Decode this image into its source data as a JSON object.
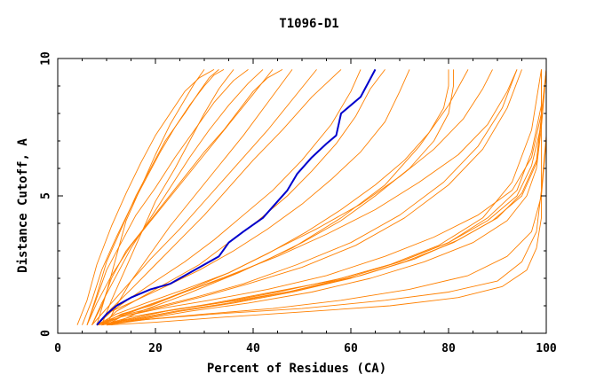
{
  "chart_data": {
    "type": "line",
    "title": "T1096-D1",
    "xlabel": "Percent of Residues (CA)",
    "ylabel": "Distance Cutoff, A",
    "xlim": [
      0,
      100
    ],
    "ylim": [
      0,
      10
    ],
    "xticks": [
      "0",
      "20",
      "40",
      "60",
      "80",
      "100"
    ],
    "yticks": [
      "0",
      "5",
      "10"
    ],
    "grid": false,
    "colors": {
      "highlight": "#0000cc",
      "others": "#ff8000"
    },
    "series": [
      {
        "highlight": true,
        "x": [
          8,
          10,
          12,
          15,
          19,
          23,
          26,
          29,
          33,
          35,
          38,
          42,
          45,
          47,
          49,
          52,
          55,
          57,
          58,
          60,
          62,
          65
        ],
        "y": [
          0.3,
          0.7,
          1.0,
          1.3,
          1.6,
          1.8,
          2.1,
          2.4,
          2.8,
          3.3,
          3.7,
          4.2,
          4.8,
          5.2,
          5.8,
          6.4,
          6.9,
          7.2,
          8.0,
          8.3,
          8.6,
          9.6
        ]
      },
      {
        "x": [
          7,
          9,
          11,
          14,
          18,
          22,
          26,
          30,
          34,
          37,
          40,
          43,
          46
        ],
        "y": [
          0.3,
          1.0,
          2.0,
          3.0,
          3.9,
          4.8,
          5.7,
          6.6,
          7.4,
          8.1,
          8.8,
          9.3,
          9.6
        ]
      },
      {
        "x": [
          5,
          7,
          9,
          12,
          15,
          18,
          21,
          24,
          27,
          30,
          32,
          34
        ],
        "y": [
          0.3,
          1.2,
          2.3,
          3.5,
          4.6,
          5.6,
          6.6,
          7.5,
          8.3,
          9.0,
          9.4,
          9.6
        ]
      },
      {
        "x": [
          6,
          8,
          10,
          13,
          16,
          19,
          22,
          26,
          29,
          31,
          33
        ],
        "y": [
          0.3,
          1.4,
          2.6,
          3.8,
          5.0,
          6.0,
          7.0,
          8.0,
          8.8,
          9.3,
          9.6
        ]
      },
      {
        "x": [
          8,
          10,
          12,
          14,
          17,
          20,
          23,
          26,
          28,
          30
        ],
        "y": [
          0.3,
          1.5,
          2.8,
          4.1,
          5.3,
          6.5,
          7.6,
          8.5,
          9.1,
          9.6
        ]
      },
      {
        "x": [
          4,
          6,
          8,
          11,
          14,
          17,
          20,
          23,
          26,
          29,
          32
        ],
        "y": [
          0.3,
          1.2,
          2.5,
          3.9,
          5.1,
          6.2,
          7.2,
          8.0,
          8.8,
          9.3,
          9.6
        ]
      },
      {
        "x": [
          9,
          11,
          14,
          17,
          20,
          24,
          27,
          30,
          33,
          36
        ],
        "y": [
          0.3,
          1.2,
          2.4,
          3.6,
          4.8,
          6.0,
          7.0,
          8.0,
          8.9,
          9.6
        ]
      },
      {
        "x": [
          7,
          9,
          12,
          15,
          19,
          23,
          27,
          31,
          35,
          39,
          42
        ],
        "y": [
          0.3,
          1.1,
          2.1,
          3.1,
          4.2,
          5.3,
          6.4,
          7.4,
          8.3,
          9.1,
          9.6
        ]
      },
      {
        "x": [
          10,
          12,
          15,
          19,
          23,
          28,
          33,
          38,
          43,
          48
        ],
        "y": [
          0.3,
          1.0,
          1.9,
          2.9,
          3.9,
          5.0,
          6.1,
          7.2,
          8.4,
          9.6
        ]
      },
      {
        "x": [
          6,
          8,
          10,
          13,
          16,
          20,
          24,
          28,
          32,
          36,
          39
        ],
        "y": [
          0.3,
          1.3,
          2.3,
          3.3,
          4.3,
          5.3,
          6.4,
          7.4,
          8.4,
          9.2,
          9.6
        ]
      },
      {
        "x": [
          8,
          11,
          15,
          20,
          25,
          30,
          35,
          40,
          46,
          52,
          58
        ],
        "y": [
          0.3,
          0.9,
          1.6,
          2.5,
          3.4,
          4.3,
          5.3,
          6.3,
          7.4,
          8.6,
          9.6
        ]
      },
      {
        "x": [
          8,
          11,
          15,
          20,
          26,
          32,
          38,
          44,
          50,
          56,
          60,
          62
        ],
        "y": [
          0.3,
          0.8,
          1.3,
          1.9,
          2.6,
          3.4,
          4.3,
          5.2,
          6.3,
          7.6,
          8.8,
          9.6
        ]
      },
      {
        "x": [
          9,
          12,
          17,
          23,
          29,
          35,
          41,
          47,
          52,
          57,
          61,
          64,
          67
        ],
        "y": [
          0.3,
          0.8,
          1.3,
          1.9,
          2.5,
          3.3,
          4.1,
          5.0,
          5.9,
          6.9,
          7.9,
          8.9,
          9.6
        ]
      },
      {
        "x": [
          8,
          11,
          16,
          22,
          29,
          36,
          43,
          50,
          56,
          62,
          67,
          70,
          72
        ],
        "y": [
          0.3,
          0.8,
          1.2,
          1.7,
          2.3,
          3.0,
          3.8,
          4.7,
          5.6,
          6.6,
          7.7,
          8.8,
          9.6
        ]
      },
      {
        "x": [
          10,
          14,
          20,
          27,
          35,
          43,
          51,
          58,
          65,
          71,
          76,
          79,
          80,
          80
        ],
        "y": [
          0.3,
          0.7,
          1.1,
          1.6,
          2.2,
          2.9,
          3.7,
          4.5,
          5.4,
          6.3,
          7.3,
          8.2,
          9.0,
          9.6
        ]
      },
      {
        "x": [
          9,
          13,
          19,
          26,
          34,
          42,
          50,
          58,
          65,
          72,
          77,
          80,
          81,
          81
        ],
        "y": [
          0.3,
          0.7,
          1.0,
          1.5,
          2.0,
          2.6,
          3.3,
          4.1,
          5.0,
          6.0,
          7.0,
          8.0,
          9.0,
          9.6
        ]
      },
      {
        "x": [
          8,
          12,
          18,
          26,
          35,
          44,
          53,
          62,
          70,
          77,
          83,
          87,
          89
        ],
        "y": [
          0.3,
          0.7,
          1.1,
          1.6,
          2.2,
          3.0,
          3.8,
          4.7,
          5.7,
          6.7,
          7.8,
          8.9,
          9.6
        ]
      },
      {
        "x": [
          8,
          12,
          18,
          26,
          35,
          45,
          55,
          65,
          74,
          82,
          88,
          92,
          94
        ],
        "y": [
          0.3,
          0.6,
          1.0,
          1.5,
          2.1,
          2.8,
          3.6,
          4.5,
          5.5,
          6.5,
          7.6,
          8.8,
          9.6
        ]
      },
      {
        "x": [
          9,
          13,
          20,
          29,
          39,
          50,
          61,
          71,
          80,
          87,
          92,
          95
        ],
        "y": [
          0.3,
          0.6,
          0.9,
          1.3,
          1.8,
          2.4,
          3.2,
          4.2,
          5.4,
          6.7,
          8.2,
          9.6
        ]
      },
      {
        "x": [
          8,
          12,
          19,
          28,
          38,
          49,
          60,
          70,
          79,
          86,
          91,
          94
        ],
        "y": [
          0.3,
          0.6,
          0.9,
          1.3,
          1.8,
          2.5,
          3.3,
          4.3,
          5.5,
          6.8,
          8.2,
          9.6
        ]
      },
      {
        "x": [
          9,
          14,
          22,
          32,
          44,
          56,
          68,
          78,
          87,
          93,
          97,
          99
        ],
        "y": [
          0.3,
          0.5,
          0.8,
          1.1,
          1.5,
          1.9,
          2.5,
          3.2,
          4.2,
          5.5,
          7.4,
          9.6
        ]
      },
      {
        "x": [
          9,
          14,
          22,
          33,
          45,
          58,
          70,
          80,
          88,
          94,
          97,
          99,
          99
        ],
        "y": [
          0.3,
          0.5,
          0.8,
          1.1,
          1.5,
          2.0,
          2.6,
          3.3,
          4.2,
          5.2,
          6.6,
          8.3,
          9.6
        ]
      },
      {
        "x": [
          10,
          16,
          25,
          36,
          48,
          60,
          71,
          81,
          89,
          95,
          98,
          99,
          99
        ],
        "y": [
          0.3,
          0.5,
          0.8,
          1.1,
          1.5,
          2.0,
          2.6,
          3.3,
          4.1,
          5.0,
          6.2,
          7.8,
          9.6
        ]
      },
      {
        "x": [
          8,
          13,
          21,
          31,
          43,
          55,
          67,
          77,
          86,
          93,
          97,
          99,
          100
        ],
        "y": [
          0.3,
          0.6,
          0.9,
          1.2,
          1.6,
          2.1,
          2.8,
          3.5,
          4.3,
          5.2,
          6.4,
          8.0,
          9.6
        ]
      },
      {
        "x": [
          9,
          15,
          24,
          35,
          47,
          59,
          70,
          80,
          88,
          94,
          97,
          99,
          100
        ],
        "y": [
          0.3,
          0.5,
          0.8,
          1.1,
          1.5,
          2.0,
          2.6,
          3.3,
          4.1,
          5.0,
          6.1,
          7.6,
          9.6
        ]
      },
      {
        "x": [
          10,
          17,
          27,
          39,
          52,
          64,
          75,
          85,
          92,
          96,
          98,
          99,
          100
        ],
        "y": [
          0.3,
          0.5,
          0.8,
          1.1,
          1.5,
          2.0,
          2.6,
          3.3,
          4.1,
          5.0,
          6.0,
          7.5,
          9.6
        ]
      },
      {
        "x": [
          9,
          15,
          25,
          37,
          50,
          62,
          73,
          82,
          90,
          95,
          98,
          99,
          99
        ],
        "y": [
          0.3,
          0.6,
          0.9,
          1.2,
          1.6,
          2.1,
          2.7,
          3.4,
          4.2,
          5.1,
          6.3,
          7.9,
          9.6
        ]
      },
      {
        "x": [
          10,
          18,
          30,
          44,
          58,
          72,
          84,
          92,
          97,
          99,
          100,
          100
        ],
        "y": [
          0.3,
          0.5,
          0.7,
          0.9,
          1.2,
          1.6,
          2.1,
          2.8,
          3.7,
          5.0,
          7.0,
          9.6
        ]
      },
      {
        "x": [
          10,
          20,
          35,
          52,
          68,
          82,
          91,
          96,
          98,
          99,
          99,
          99,
          99
        ],
        "y": [
          0.3,
          0.4,
          0.6,
          0.8,
          1.0,
          1.3,
          1.7,
          2.3,
          3.1,
          4.2,
          5.6,
          7.4,
          9.6
        ]
      },
      {
        "x": [
          8,
          18,
          32,
          50,
          67,
          80,
          90,
          95,
          98,
          99,
          100,
          100
        ],
        "y": [
          0.3,
          0.5,
          0.7,
          0.9,
          1.2,
          1.5,
          1.9,
          2.6,
          3.7,
          5.2,
          7.2,
          9.6
        ]
      },
      {
        "x": [
          11,
          17,
          26,
          37,
          48,
          58,
          67,
          74,
          80,
          84
        ],
        "y": [
          0.3,
          0.8,
          1.4,
          2.2,
          3.1,
          4.2,
          5.4,
          6.8,
          8.3,
          9.6
        ]
      },
      {
        "x": [
          7,
          10,
          14,
          19,
          25,
          31,
          37,
          43,
          48,
          53
        ],
        "y": [
          0.3,
          0.9,
          1.7,
          2.7,
          3.8,
          5.0,
          6.2,
          7.4,
          8.5,
          9.6
        ]
      },
      {
        "x": [
          6,
          8,
          11,
          15,
          20,
          25,
          30,
          35,
          40,
          44
        ],
        "y": [
          0.3,
          1.1,
          2.1,
          3.2,
          4.3,
          5.4,
          6.5,
          7.6,
          8.7,
          9.6
        ]
      }
    ]
  }
}
